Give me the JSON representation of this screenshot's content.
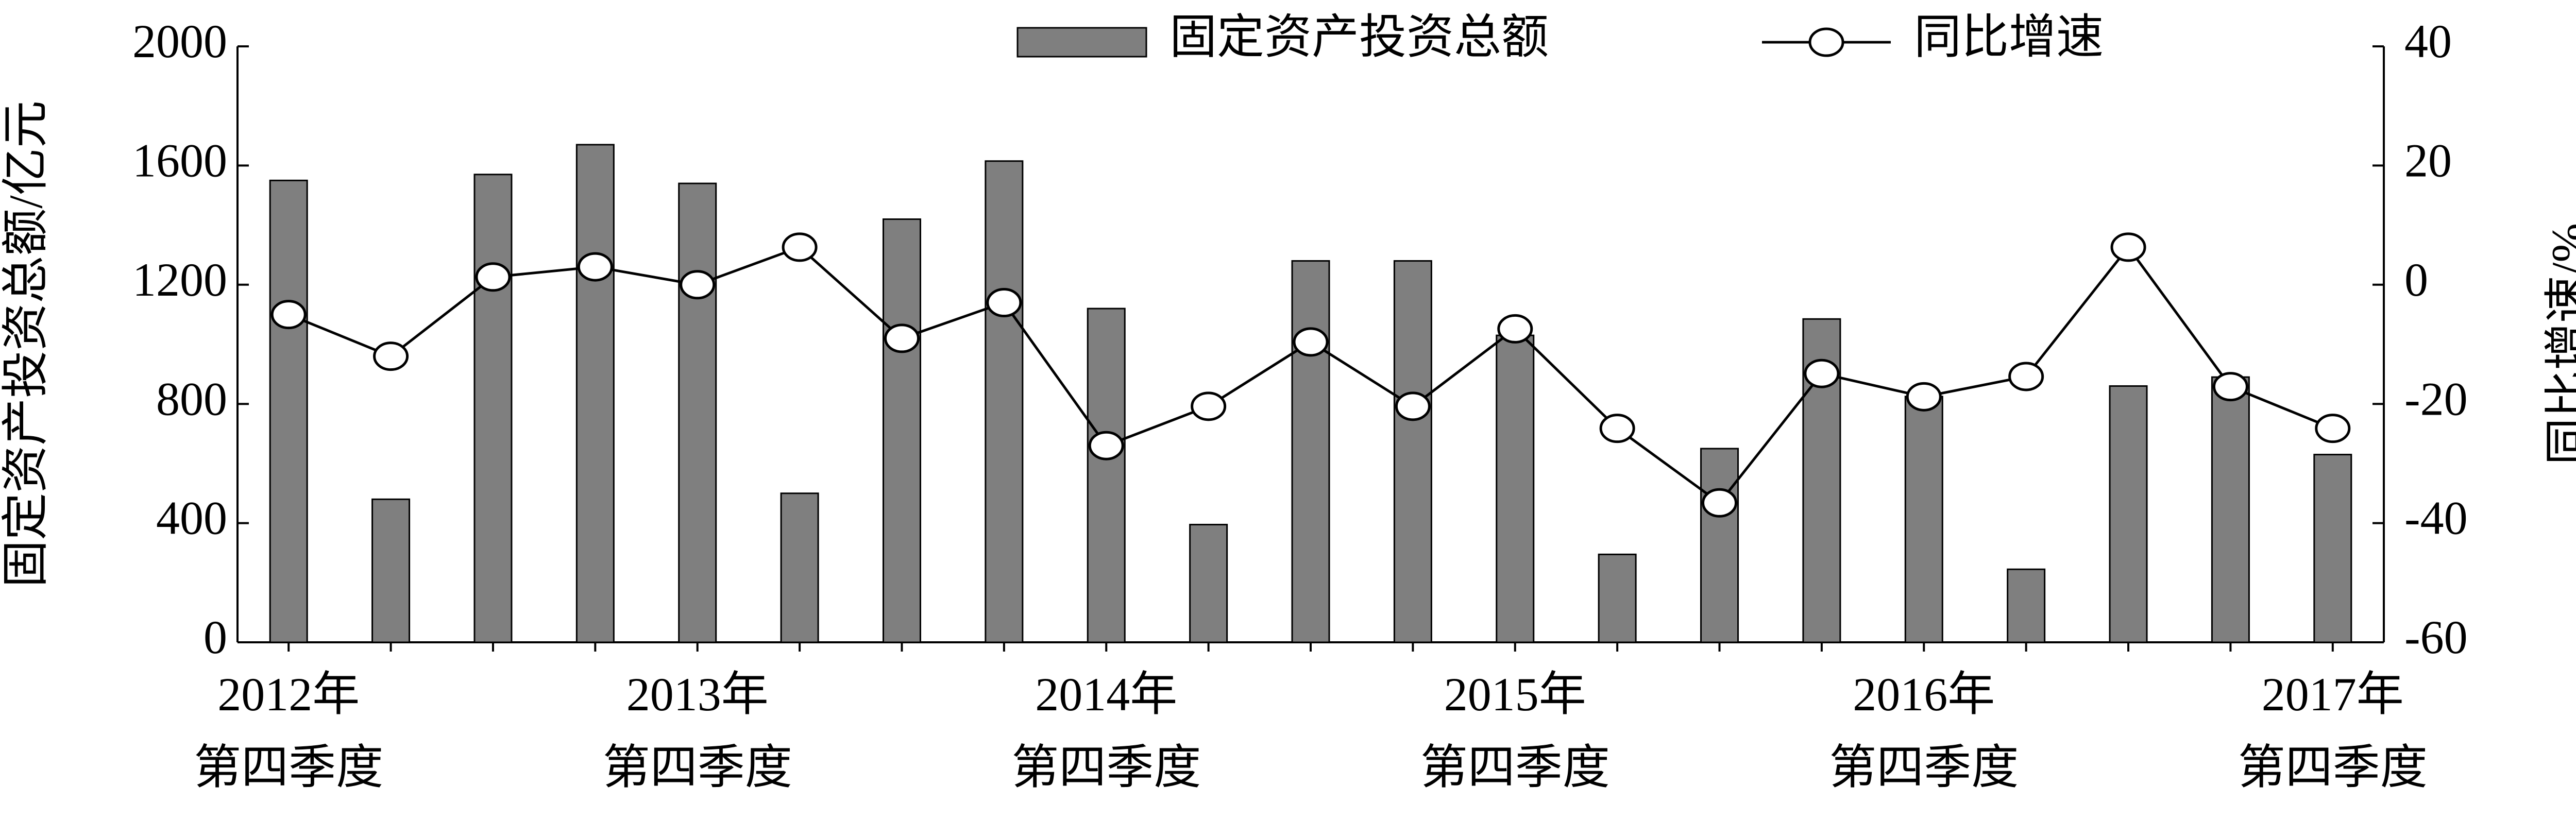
{
  "chart_data": {
    "type": "bar_line",
    "y_label": "固定资产投资总额/亿元",
    "y2_label": "同比增速/%",
    "categories": [
      "2012年\n第四季度",
      null,
      null,
      null,
      "2013年\n第四季度",
      null,
      null,
      null,
      "2014年\n第四季度",
      null,
      null,
      null,
      "2015年\n第四季度",
      null,
      null,
      null,
      "2016年\n第四季度",
      null,
      null,
      null,
      "2017年\n第四季度"
    ],
    "series": [
      {
        "name": "固定资产投资总额",
        "type": "bar",
        "color": "#7f7f7f",
        "values": [
          1550,
          480,
          1570,
          1670,
          1540,
          500,
          1420,
          1615,
          1120,
          395,
          1280,
          1280,
          1030,
          295,
          650,
          1085,
          825,
          245,
          860,
          890,
          630
        ]
      },
      {
        "name": "同比增速",
        "type": "line",
        "axis": "y2",
        "color": "#000000",
        "values": [
          -5,
          -12,
          1.3,
          3,
          0,
          6.3,
          -9,
          -3,
          -27,
          -20.4,
          -9.6,
          -20.4,
          -7.4,
          -24.1,
          -36.6,
          -14.9,
          -18.8,
          -15.4,
          6.3,
          -17.1,
          -24.1
        ]
      }
    ],
    "ylim": [
      0,
      2000
    ],
    "yticks": [
      0,
      400,
      800,
      1200,
      1600,
      2000
    ],
    "y2lim": [
      -60,
      40
    ],
    "y2ticks": [
      -60,
      -40,
      -20,
      0,
      20,
      40
    ],
    "grid": false
  }
}
